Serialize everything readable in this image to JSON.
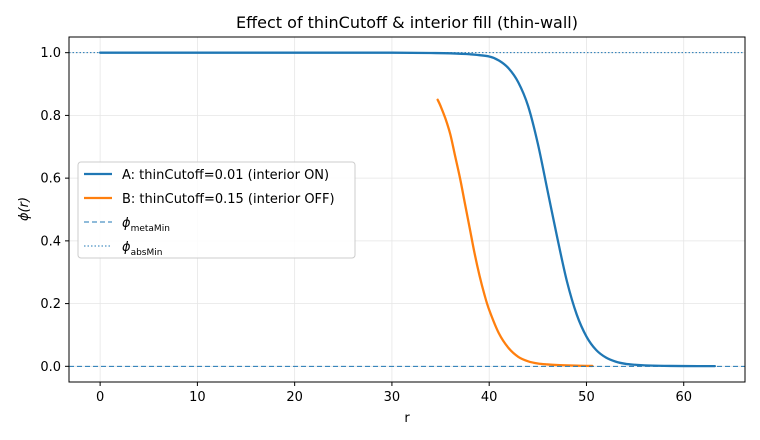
{
  "chart_data": {
    "type": "line",
    "title": "Effect of thinCutoff & interior fill (thin-wall)",
    "xlabel": "r",
    "ylabel": "ϕ(r)",
    "xlim": [
      -3.2,
      66.3
    ],
    "ylim": [
      -0.05,
      1.05
    ],
    "xticks": [
      0,
      10,
      20,
      30,
      40,
      50,
      60
    ],
    "yticks": [
      0.0,
      0.2,
      0.4,
      0.6,
      0.8,
      1.0
    ],
    "xtick_labels": [
      "0",
      "10",
      "20",
      "30",
      "40",
      "50",
      "60"
    ],
    "ytick_labels": [
      "0.0",
      "0.2",
      "0.4",
      "0.6",
      "0.8",
      "1.0"
    ],
    "grid": true,
    "legend_position": "center-left",
    "series": [
      {
        "name": "A: thinCutoff=0.01 (interior ON)",
        "color": "#1f77b4",
        "style": "solid",
        "x": [
          0,
          5,
          10,
          15,
          20,
          25,
          30,
          34,
          36,
          38,
          40,
          41,
          42,
          43,
          44,
          45,
          46,
          47,
          48,
          49,
          50,
          51,
          52,
          53,
          54,
          55,
          56,
          58,
          60,
          63.2
        ],
        "y": [
          1.0,
          1.0,
          1.0,
          1.0,
          1.0,
          1.0,
          1.0,
          0.999,
          0.998,
          0.995,
          0.988,
          0.975,
          0.95,
          0.905,
          0.83,
          0.71,
          0.56,
          0.41,
          0.27,
          0.165,
          0.095,
          0.052,
          0.028,
          0.015,
          0.008,
          0.005,
          0.003,
          0.0015,
          0.0008,
          0.0005
        ]
      },
      {
        "name": "B: thinCutoff=0.15 (interior OFF)",
        "color": "#ff7f0e",
        "style": "solid",
        "x": [
          34.7,
          35,
          35.5,
          36,
          36.5,
          37,
          37.5,
          38,
          38.5,
          39,
          39.5,
          40,
          41,
          42,
          43,
          44,
          45,
          46,
          47,
          48,
          49,
          50,
          50.6
        ],
        "y": [
          0.85,
          0.83,
          0.79,
          0.74,
          0.67,
          0.6,
          0.52,
          0.44,
          0.36,
          0.29,
          0.23,
          0.18,
          0.105,
          0.058,
          0.03,
          0.016,
          0.009,
          0.006,
          0.004,
          0.003,
          0.002,
          0.0015,
          0.0012
        ]
      },
      {
        "name": "ϕ metaMin",
        "name_base": "ϕ",
        "name_sub": "metaMin",
        "color": "#1f77b4",
        "style": "dashed",
        "hline": 0.0
      },
      {
        "name": "ϕ absMin",
        "name_base": "ϕ",
        "name_sub": "absMin",
        "color": "#1f77b4",
        "style": "dotted",
        "hline": 1.0
      }
    ]
  }
}
